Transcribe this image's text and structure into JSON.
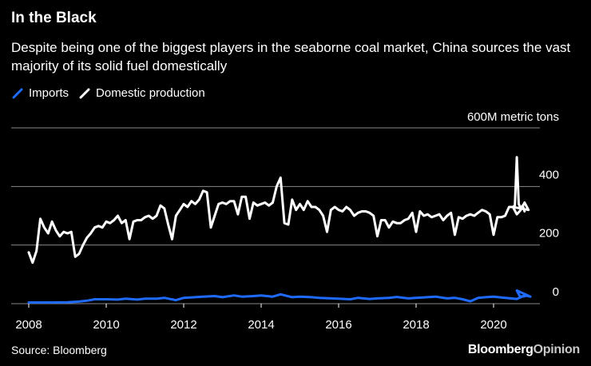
{
  "header": {
    "title": "In the Black",
    "subtitle": "Despite being one of the biggest players in the seaborne coal market, China sources the vast majority of its solid fuel domestically"
  },
  "legend": {
    "items": [
      {
        "label": "Imports",
        "color": "#1f6bff"
      },
      {
        "label": "Domestic production",
        "color": "#ffffff"
      }
    ]
  },
  "footer": {
    "source": "Source: Bloomberg",
    "brand_main": "Bloomberg",
    "brand_secondary": "Opinion"
  },
  "chart_data": {
    "type": "line",
    "ylabel": "600M metric tons",
    "ylim": [
      0,
      600
    ],
    "yticks": [
      0,
      200,
      400
    ],
    "xlim": [
      2007.8,
      2020.95
    ],
    "xticks": [
      2008,
      2010,
      2012,
      2014,
      2016,
      2018,
      2020
    ],
    "series": [
      {
        "name": "Domestic production",
        "color": "#ffffff",
        "points": [
          [
            2008.0,
            175
          ],
          [
            2008.1,
            140
          ],
          [
            2008.2,
            180
          ],
          [
            2008.3,
            290
          ],
          [
            2008.4,
            260
          ],
          [
            2008.5,
            240
          ],
          [
            2008.6,
            280
          ],
          [
            2008.7,
            250
          ],
          [
            2008.8,
            230
          ],
          [
            2008.9,
            245
          ],
          [
            2009.0,
            240
          ],
          [
            2009.1,
            245
          ],
          [
            2009.2,
            160
          ],
          [
            2009.3,
            170
          ],
          [
            2009.4,
            200
          ],
          [
            2009.5,
            225
          ],
          [
            2009.6,
            240
          ],
          [
            2009.7,
            260
          ],
          [
            2009.8,
            265
          ],
          [
            2009.9,
            260
          ],
          [
            2010.0,
            280
          ],
          [
            2010.1,
            275
          ],
          [
            2010.2,
            285
          ],
          [
            2010.3,
            300
          ],
          [
            2010.4,
            275
          ],
          [
            2010.5,
            285
          ],
          [
            2010.6,
            220
          ],
          [
            2010.7,
            280
          ],
          [
            2010.8,
            285
          ],
          [
            2010.9,
            285
          ],
          [
            2011.0,
            295
          ],
          [
            2011.1,
            300
          ],
          [
            2011.2,
            290
          ],
          [
            2011.3,
            300
          ],
          [
            2011.4,
            335
          ],
          [
            2011.5,
            325
          ],
          [
            2011.6,
            270
          ],
          [
            2011.7,
            220
          ],
          [
            2011.8,
            300
          ],
          [
            2011.9,
            320
          ],
          [
            2012.0,
            340
          ],
          [
            2012.1,
            330
          ],
          [
            2012.2,
            350
          ],
          [
            2012.3,
            340
          ],
          [
            2012.4,
            355
          ],
          [
            2012.5,
            385
          ],
          [
            2012.6,
            380
          ],
          [
            2012.7,
            260
          ],
          [
            2012.8,
            300
          ],
          [
            2012.9,
            340
          ],
          [
            2013.0,
            345
          ],
          [
            2013.1,
            340
          ],
          [
            2013.2,
            350
          ],
          [
            2013.3,
            350
          ],
          [
            2013.4,
            305
          ],
          [
            2013.5,
            365
          ],
          [
            2013.6,
            365
          ],
          [
            2013.7,
            290
          ],
          [
            2013.8,
            345
          ],
          [
            2013.9,
            335
          ],
          [
            2014.0,
            340
          ],
          [
            2014.1,
            345
          ],
          [
            2014.2,
            335
          ],
          [
            2014.3,
            345
          ],
          [
            2014.4,
            400
          ],
          [
            2014.5,
            430
          ],
          [
            2014.6,
            275
          ],
          [
            2014.7,
            270
          ],
          [
            2014.8,
            355
          ],
          [
            2014.9,
            320
          ],
          [
            2015.0,
            340
          ],
          [
            2015.1,
            320
          ],
          [
            2015.2,
            350
          ],
          [
            2015.3,
            330
          ],
          [
            2015.4,
            330
          ],
          [
            2015.5,
            320
          ],
          [
            2015.6,
            300
          ],
          [
            2015.7,
            245
          ],
          [
            2015.8,
            320
          ],
          [
            2015.9,
            330
          ],
          [
            2016.0,
            320
          ],
          [
            2016.1,
            315
          ],
          [
            2016.2,
            330
          ],
          [
            2016.3,
            320
          ],
          [
            2016.4,
            300
          ],
          [
            2016.5,
            310
          ],
          [
            2016.6,
            315
          ],
          [
            2016.7,
            315
          ],
          [
            2016.8,
            310
          ],
          [
            2016.9,
            300
          ],
          [
            2017.0,
            230
          ],
          [
            2017.1,
            285
          ],
          [
            2017.2,
            285
          ],
          [
            2017.3,
            260
          ],
          [
            2017.4,
            280
          ],
          [
            2017.5,
            275
          ],
          [
            2017.6,
            275
          ],
          [
            2017.7,
            285
          ],
          [
            2017.8,
            290
          ],
          [
            2017.9,
            310
          ],
          [
            2018.0,
            245
          ],
          [
            2018.1,
            315
          ],
          [
            2018.2,
            300
          ],
          [
            2018.3,
            305
          ],
          [
            2018.4,
            295
          ],
          [
            2018.5,
            300
          ],
          [
            2018.6,
            305
          ],
          [
            2018.7,
            285
          ],
          [
            2018.8,
            300
          ],
          [
            2018.9,
            310
          ],
          [
            2019.0,
            235
          ],
          [
            2019.1,
            295
          ],
          [
            2019.2,
            290
          ],
          [
            2019.3,
            300
          ],
          [
            2019.4,
            305
          ],
          [
            2019.5,
            300
          ],
          [
            2019.6,
            310
          ],
          [
            2019.7,
            320
          ],
          [
            2019.8,
            315
          ],
          [
            2019.9,
            305
          ],
          [
            2020.0,
            235
          ],
          [
            2020.1,
            295
          ],
          [
            2020.2,
            295
          ],
          [
            2020.3,
            300
          ],
          [
            2020.4,
            330
          ],
          [
            2020.5,
            330
          ],
          [
            2020.6,
            305
          ],
          [
            2020.7,
            320
          ],
          [
            2020.8,
            345
          ],
          [
            2020.9,
            320
          ],
          [
            2021.0,
            330
          ],
          [
            2021.1,
            335
          ],
          [
            2021.2,
            500
          ],
          [
            2021.3,
            340
          ],
          [
            2021.4,
            325
          ],
          [
            2021.5,
            335
          ],
          [
            2021.6,
            315
          ]
        ]
      },
      {
        "name": "Imports",
        "color": "#1f6bff",
        "points": [
          [
            2008.0,
            4
          ],
          [
            2008.5,
            4
          ],
          [
            2009.0,
            5
          ],
          [
            2009.3,
            7
          ],
          [
            2009.5,
            10
          ],
          [
            2009.7,
            15
          ],
          [
            2010.0,
            15
          ],
          [
            2010.3,
            14
          ],
          [
            2010.5,
            17
          ],
          [
            2010.8,
            14
          ],
          [
            2011.0,
            17
          ],
          [
            2011.3,
            17
          ],
          [
            2011.5,
            20
          ],
          [
            2011.8,
            12
          ],
          [
            2012.0,
            20
          ],
          [
            2012.3,
            22
          ],
          [
            2012.5,
            24
          ],
          [
            2012.8,
            26
          ],
          [
            2013.0,
            22
          ],
          [
            2013.3,
            28
          ],
          [
            2013.5,
            24
          ],
          [
            2013.8,
            26
          ],
          [
            2014.0,
            28
          ],
          [
            2014.3,
            24
          ],
          [
            2014.5,
            32
          ],
          [
            2014.8,
            22
          ],
          [
            2015.0,
            24
          ],
          [
            2015.3,
            22
          ],
          [
            2015.5,
            20
          ],
          [
            2015.8,
            18
          ],
          [
            2016.0,
            17
          ],
          [
            2016.3,
            15
          ],
          [
            2016.5,
            20
          ],
          [
            2016.8,
            16
          ],
          [
            2017.0,
            18
          ],
          [
            2017.3,
            20
          ],
          [
            2017.5,
            23
          ],
          [
            2017.8,
            18
          ],
          [
            2018.0,
            20
          ],
          [
            2018.3,
            22
          ],
          [
            2018.5,
            24
          ],
          [
            2018.8,
            18
          ],
          [
            2019.0,
            20
          ],
          [
            2019.2,
            15
          ],
          [
            2019.4,
            8
          ],
          [
            2019.6,
            20
          ],
          [
            2019.8,
            22
          ],
          [
            2020.0,
            24
          ],
          [
            2020.3,
            20
          ],
          [
            2020.6,
            16
          ],
          [
            2020.8,
            28
          ],
          [
            2020.95,
            24
          ],
          [
            2021.2,
            45
          ],
          [
            2021.35,
            26
          ],
          [
            2021.5,
            24
          ],
          [
            2021.6,
            25
          ]
        ]
      }
    ]
  }
}
